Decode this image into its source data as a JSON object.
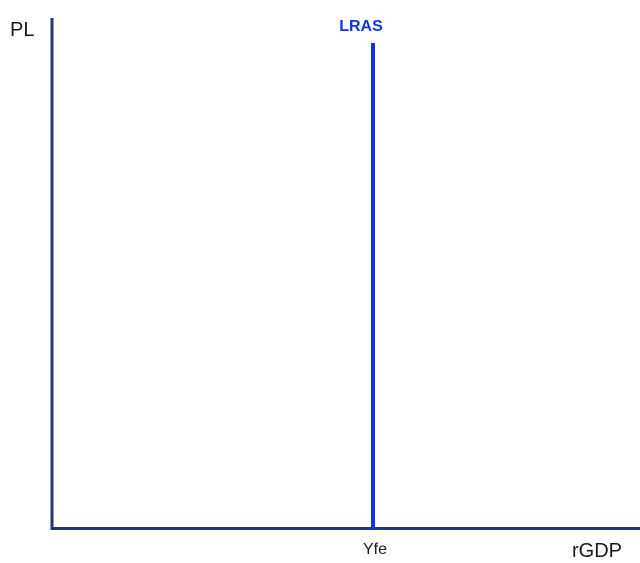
{
  "diagram": {
    "y_axis_label": "PL",
    "x_axis_label": "rGDP",
    "curve": {
      "label": "LRAS",
      "color": "#0b35e6"
    },
    "x_tick_label": "Yfe",
    "axis_color": "#1f3b73"
  }
}
